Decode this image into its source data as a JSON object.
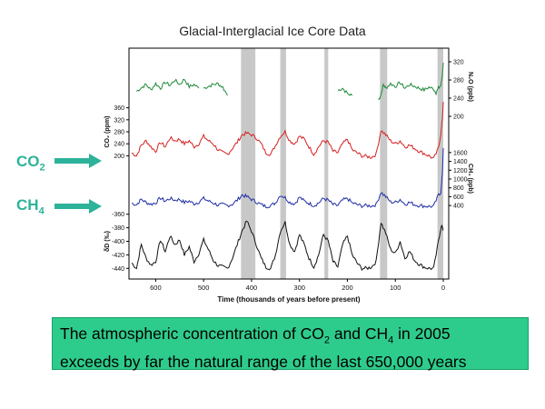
{
  "chart_data": {
    "type": "line",
    "title": "Glacial-Interglacial Ice Core Data",
    "xlabel": "Time (thousands of years before present)",
    "x_ticks": [
      600,
      500,
      400,
      300,
      200,
      100,
      0
    ],
    "xlim": [
      650,
      0
    ],
    "shaded_bands_kyr": [
      [
        422,
        392
      ],
      [
        340,
        328
      ],
      [
        248,
        240
      ],
      [
        132,
        117
      ],
      [
        12,
        0
      ]
    ],
    "series": [
      {
        "name": "N2O",
        "axis_label": "N₂O (ppb)",
        "color": "#1f8a3a",
        "ticks": [
          200,
          240,
          280,
          320
        ],
        "ylim": [
          200,
          330
        ],
        "segments": [
          {
            "x": [
              640,
              630,
              620,
              610,
              600,
              590,
              580,
              570,
              560,
              550,
              540,
              530,
              520,
              510
            ],
            "y": [
              255,
              263,
              270,
              258,
              272,
              262,
              275,
              268,
              280,
              270,
              282,
              265,
              270,
              262
            ]
          },
          {
            "x": [
              500,
              490,
              480,
              470,
              460,
              450
            ],
            "y": [
              262,
              266,
              270,
              272,
              264,
              246
            ]
          },
          {
            "x": [
              220,
              210,
              200,
              190
            ],
            "y": [
              257,
              262,
              250,
              246
            ]
          },
          {
            "x": [
              135,
              130,
              125,
              120,
              110,
              100,
              90,
              80,
              70,
              60,
              50,
              40,
              30,
              20,
              15,
              10,
              5,
              2,
              0
            ],
            "y": [
              236,
              248,
              270,
              262,
              272,
              266,
              274,
              262,
              270,
              266,
              262,
              258,
              264,
              260,
              252,
              262,
              268,
              290,
              318
            ]
          }
        ]
      },
      {
        "name": "CO2",
        "axis_label": "CO₂ (ppm)",
        "color": "#d62020",
        "ticks": [
          200,
          240,
          280,
          320,
          360
        ],
        "ylim": [
          180,
          380
        ],
        "x": [
          650,
          640,
          630,
          620,
          610,
          600,
          590,
          580,
          570,
          560,
          550,
          540,
          530,
          520,
          510,
          500,
          490,
          480,
          470,
          460,
          450,
          440,
          430,
          420,
          410,
          400,
          390,
          380,
          370,
          360,
          350,
          340,
          330,
          320,
          310,
          300,
          290,
          280,
          270,
          260,
          250,
          240,
          230,
          220,
          210,
          200,
          190,
          180,
          170,
          160,
          150,
          140,
          130,
          120,
          110,
          100,
          90,
          80,
          70,
          60,
          50,
          40,
          30,
          20,
          10,
          5,
          2,
          0
        ],
        "y": [
          210,
          200,
          235,
          250,
          230,
          215,
          245,
          230,
          260,
          250,
          255,
          240,
          250,
          230,
          240,
          265,
          250,
          240,
          220,
          210,
          205,
          225,
          245,
          270,
          275,
          270,
          260,
          240,
          210,
          205,
          235,
          265,
          280,
          250,
          240,
          265,
          255,
          230,
          205,
          230,
          250,
          245,
          215,
          210,
          240,
          255,
          220,
          210,
          200,
          198,
          195,
          205,
          285,
          270,
          250,
          240,
          250,
          230,
          235,
          225,
          215,
          208,
          200,
          190,
          225,
          275,
          320,
          380
        ]
      },
      {
        "name": "CH4",
        "axis_label": "CH₄ (ppb)",
        "color": "#1f2ea6",
        "ticks": [
          400,
          600,
          800,
          1000,
          1200,
          1400,
          1600
        ],
        "ylim": [
          320,
          1700
        ],
        "x": [
          650,
          640,
          630,
          620,
          610,
          600,
          590,
          580,
          570,
          560,
          550,
          540,
          530,
          520,
          510,
          500,
          490,
          480,
          470,
          460,
          450,
          440,
          430,
          420,
          410,
          400,
          390,
          380,
          370,
          360,
          350,
          340,
          330,
          320,
          310,
          300,
          290,
          280,
          270,
          260,
          250,
          240,
          230,
          220,
          210,
          200,
          190,
          180,
          170,
          160,
          150,
          140,
          130,
          120,
          110,
          100,
          90,
          80,
          70,
          60,
          50,
          40,
          30,
          20,
          10,
          5,
          2,
          0
        ],
        "y": [
          450,
          420,
          540,
          470,
          430,
          460,
          570,
          500,
          560,
          520,
          540,
          470,
          500,
          440,
          480,
          560,
          500,
          460,
          410,
          420,
          400,
          430,
          520,
          640,
          600,
          540,
          480,
          420,
          380,
          400,
          460,
          640,
          580,
          470,
          440,
          590,
          500,
          450,
          400,
          460,
          560,
          520,
          420,
          400,
          520,
          560,
          460,
          420,
          390,
          400,
          390,
          420,
          700,
          600,
          480,
          470,
          540,
          430,
          470,
          420,
          400,
          390,
          380,
          380,
          640,
          700,
          1100,
          1700
        ]
      },
      {
        "name": "δD",
        "axis_label": "δD (‰)",
        "color": "#111111",
        "ticks": [
          -360,
          -380,
          -400,
          -420,
          -440
        ],
        "ylim": [
          -445,
          -355
        ],
        "x": [
          650,
          640,
          630,
          620,
          610,
          600,
          590,
          580,
          570,
          560,
          550,
          540,
          530,
          520,
          510,
          500,
          490,
          480,
          470,
          460,
          450,
          440,
          430,
          420,
          410,
          400,
          390,
          380,
          370,
          360,
          350,
          340,
          330,
          320,
          310,
          300,
          290,
          280,
          270,
          260,
          250,
          240,
          230,
          220,
          210,
          200,
          190,
          180,
          170,
          160,
          150,
          140,
          130,
          120,
          110,
          100,
          90,
          80,
          70,
          60,
          50,
          40,
          30,
          20,
          10,
          5,
          2,
          0
        ],
        "y": [
          -432,
          -440,
          -405,
          -425,
          -435,
          -430,
          -398,
          -415,
          -392,
          -405,
          -398,
          -420,
          -408,
          -430,
          -418,
          -398,
          -412,
          -428,
          -436,
          -438,
          -440,
          -425,
          -405,
          -385,
          -370,
          -385,
          -405,
          -425,
          -438,
          -440,
          -420,
          -385,
          -372,
          -405,
          -415,
          -390,
          -405,
          -425,
          -438,
          -420,
          -390,
          -400,
          -430,
          -438,
          -405,
          -392,
          -420,
          -432,
          -440,
          -440,
          -438,
          -430,
          -372,
          -388,
          -412,
          -418,
          -400,
          -425,
          -415,
          -428,
          -434,
          -438,
          -440,
          -440,
          -400,
          -380,
          -378,
          -382
        ]
      }
    ]
  },
  "labels": {
    "co2_main": "CO",
    "co2_sub": "2",
    "ch4_main": "CH",
    "ch4_sub": "4"
  },
  "caption": {
    "line1_a": "The atmospheric concentration of CO",
    "line1_b": "2",
    "line1_c": " and CH",
    "line1_d": "4",
    "line1_e": " in 2005",
    "line2": "exceeds by far the natural range of the last 650,000 years"
  },
  "colors": {
    "arrow": "#2db39a",
    "band": "#c8c8c8",
    "caption_bg": "#2ecc8c"
  }
}
